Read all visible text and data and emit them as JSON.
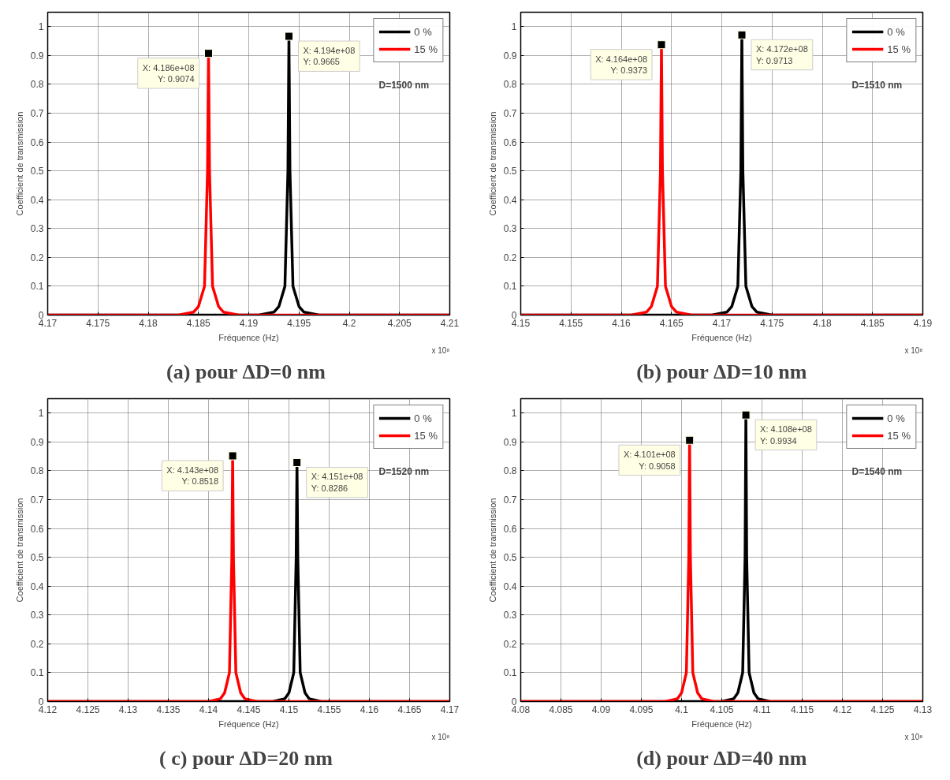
{
  "chart_data": [
    {
      "type": "line",
      "title": "(a)  pour ΔD=0 nm",
      "xlabel": "Fréquence (Hz)",
      "ylabel": "Coefficient de transmission",
      "xlim": [
        4.17,
        4.21
      ],
      "xticks": [
        4.17,
        4.175,
        4.18,
        4.185,
        4.19,
        4.195,
        4.2,
        4.205,
        4.21
      ],
      "ylim": [
        0,
        1.05
      ],
      "yticks": [
        0,
        0.1,
        0.2,
        0.3,
        0.4,
        0.5,
        0.6,
        0.7,
        0.8,
        0.9,
        1
      ],
      "grid": true,
      "legend": "top right",
      "line_style": "solid",
      "series": [
        {
          "name": "0 %",
          "color": "#000000",
          "x": [
            4.17,
            4.191,
            4.1925,
            4.193,
            4.1936,
            4.1939,
            4.194,
            4.1941,
            4.1944,
            4.195,
            4.1955,
            4.197,
            4.21
          ],
          "values": [
            0,
            0,
            0.01,
            0.03,
            0.1,
            0.5,
            0.9665,
            0.5,
            0.1,
            0.03,
            0.01,
            0,
            0
          ]
        },
        {
          "name": "15 %",
          "color": "#ff0000",
          "x": [
            4.17,
            4.183,
            4.1845,
            4.185,
            4.1856,
            4.1859,
            4.186,
            4.1861,
            4.1864,
            4.187,
            4.1875,
            4.189,
            4.21
          ],
          "values": [
            0,
            0,
            0.01,
            0.03,
            0.1,
            0.5,
            0.9074,
            0.5,
            0.1,
            0.03,
            0.01,
            0,
            0
          ]
        }
      ],
      "annotations": [
        {
          "text": "X: 4.194e+08\nY: 0.9665",
          "x": 4.194,
          "y": 0.9665
        },
        {
          "text": "X: 4.186e+08\nY: 0.9074",
          "x": 4.186,
          "y": 0.9074
        },
        "D=1500 nm",
        "x 10⁸"
      ]
    },
    {
      "type": "line",
      "title": "(b) pour ΔD=10 nm",
      "xlabel": "Fréquence (Hz)",
      "ylabel": "Coefficient de transmission",
      "xlim": [
        4.15,
        4.19
      ],
      "xticks": [
        4.15,
        4.155,
        4.16,
        4.165,
        4.17,
        4.175,
        4.18,
        4.185,
        4.19
      ],
      "ylim": [
        0,
        1.05
      ],
      "yticks": [
        0,
        0.1,
        0.2,
        0.3,
        0.4,
        0.5,
        0.6,
        0.7,
        0.8,
        0.9,
        1
      ],
      "grid": true,
      "legend": "top right",
      "line_style": "solid",
      "series": [
        {
          "name": "0 %",
          "color": "#000000",
          "x": [
            4.15,
            4.169,
            4.1705,
            4.171,
            4.1716,
            4.1719,
            4.172,
            4.1721,
            4.1724,
            4.173,
            4.1735,
            4.175,
            4.19
          ],
          "values": [
            0,
            0,
            0.01,
            0.03,
            0.1,
            0.5,
            0.9713,
            0.5,
            0.1,
            0.03,
            0.01,
            0,
            0
          ]
        },
        {
          "name": "15 %",
          "color": "#ff0000",
          "x": [
            4.15,
            4.161,
            4.1625,
            4.163,
            4.1636,
            4.1639,
            4.164,
            4.1641,
            4.1644,
            4.165,
            4.1655,
            4.167,
            4.19
          ],
          "values": [
            0,
            0,
            0.01,
            0.03,
            0.1,
            0.5,
            0.9373,
            0.5,
            0.1,
            0.03,
            0.01,
            0,
            0
          ]
        }
      ],
      "annotations": [
        {
          "text": "X: 4.172e+08\nY: 0.9713",
          "x": 4.172,
          "y": 0.9713
        },
        {
          "text": "X: 4.164e+08\nY: 0.9373",
          "x": 4.164,
          "y": 0.9373
        },
        "D=1510 nm",
        "x 10⁸"
      ]
    },
    {
      "type": "line",
      "title": "( c)  pour ΔD=20 nm",
      "xlabel": "Fréquence (Hz)",
      "ylabel": "Coefficient de transmission",
      "xlim": [
        4.12,
        4.17
      ],
      "xticks": [
        4.12,
        4.125,
        4.13,
        4.135,
        4.14,
        4.145,
        4.15,
        4.155,
        4.16,
        4.165,
        4.17
      ],
      "ylim": [
        0,
        1.05
      ],
      "yticks": [
        0,
        0.1,
        0.2,
        0.3,
        0.4,
        0.5,
        0.6,
        0.7,
        0.8,
        0.9,
        1
      ],
      "grid": true,
      "legend": "top right",
      "line_style": "solid",
      "series": [
        {
          "name": "0 %",
          "color": "#000000",
          "x": [
            4.12,
            4.148,
            4.1495,
            4.15,
            4.1506,
            4.1509,
            4.151,
            4.1511,
            4.1514,
            4.152,
            4.1525,
            4.154,
            4.17
          ],
          "values": [
            0,
            0,
            0.01,
            0.03,
            0.1,
            0.5,
            0.8286,
            0.5,
            0.1,
            0.03,
            0.01,
            0,
            0
          ]
        },
        {
          "name": "15 %",
          "color": "#ff0000",
          "x": [
            4.12,
            4.14,
            4.1415,
            4.142,
            4.1426,
            4.1429,
            4.143,
            4.1431,
            4.1434,
            4.144,
            4.1445,
            4.146,
            4.17
          ],
          "values": [
            0,
            0,
            0.01,
            0.03,
            0.1,
            0.5,
            0.8518,
            0.5,
            0.1,
            0.03,
            0.01,
            0,
            0
          ]
        }
      ],
      "annotations": [
        {
          "text": "X: 4.151e+08\nY: 0.8286",
          "x": 4.151,
          "y": 0.8286
        },
        {
          "text": "X: 4.143e+08\nY: 0.8518",
          "x": 4.143,
          "y": 0.8518
        },
        "D=1520 nm",
        "x 10⁸"
      ]
    },
    {
      "type": "line",
      "title": "(d) pour ΔD=40 nm",
      "xlabel": "Fréquence (Hz)",
      "ylabel": "Coefficient de transmission",
      "xlim": [
        4.08,
        4.13
      ],
      "xticks": [
        4.08,
        4.085,
        4.09,
        4.095,
        4.1,
        4.105,
        4.11,
        4.115,
        4.12,
        4.125,
        4.13
      ],
      "ylim": [
        0,
        1.05
      ],
      "yticks": [
        0,
        0.1,
        0.2,
        0.3,
        0.4,
        0.5,
        0.6,
        0.7,
        0.8,
        0.9,
        1
      ],
      "grid": true,
      "legend": "top right",
      "line_style": "solid",
      "series": [
        {
          "name": "0 %",
          "color": "#000000",
          "x": [
            4.08,
            4.105,
            4.1065,
            4.107,
            4.1076,
            4.1079,
            4.108,
            4.1081,
            4.1084,
            4.109,
            4.1095,
            4.111,
            4.13
          ],
          "values": [
            0,
            0,
            0.01,
            0.03,
            0.1,
            0.5,
            0.9934,
            0.5,
            0.1,
            0.03,
            0.01,
            0,
            0
          ]
        },
        {
          "name": "15 %",
          "color": "#ff0000",
          "x": [
            4.08,
            4.098,
            4.0995,
            4.1,
            4.1006,
            4.1009,
            4.101,
            4.1011,
            4.1014,
            4.102,
            4.1025,
            4.104,
            4.13
          ],
          "values": [
            0,
            0,
            0.01,
            0.03,
            0.1,
            0.5,
            0.9058,
            0.5,
            0.1,
            0.03,
            0.01,
            0,
            0
          ]
        }
      ],
      "annotations": [
        {
          "text": "X: 4.108e+08\nY: 0.9934",
          "x": 4.108,
          "y": 0.9934
        },
        {
          "text": "X: 4.101e+08\nY: 0.9058",
          "x": 4.101,
          "y": 0.9058
        },
        "D=1540 nm",
        "x 10⁸"
      ]
    }
  ]
}
